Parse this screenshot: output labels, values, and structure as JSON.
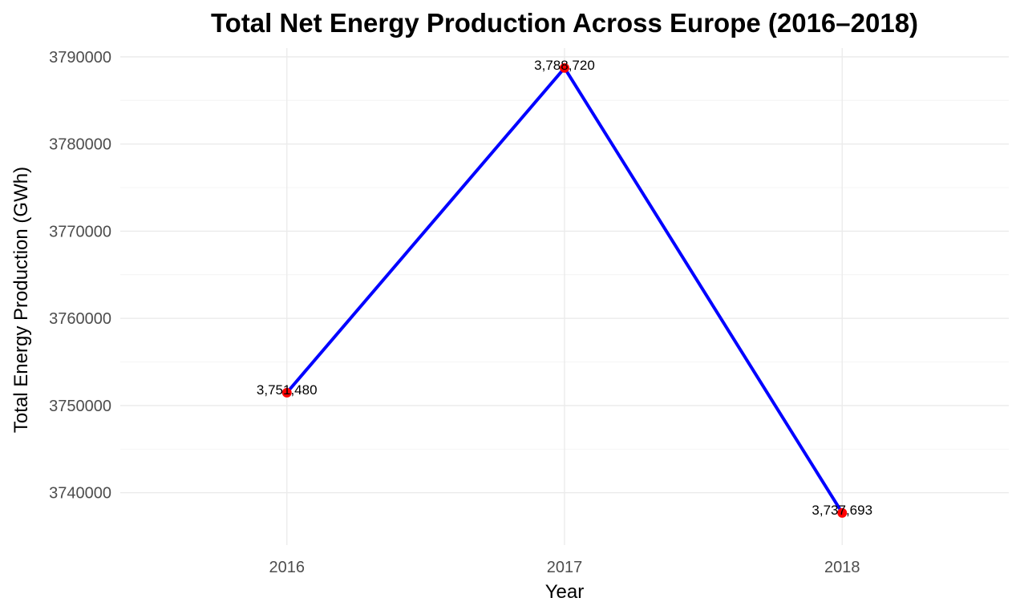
{
  "chart_data": {
    "type": "line",
    "title": "Total Net Energy Production Across Europe (2016–2018)",
    "xlabel": "Year",
    "ylabel": "Total Energy Production (GWh)",
    "x": [
      2016,
      2017,
      2018
    ],
    "x_tick_labels": [
      "2016",
      "2017",
      "2018"
    ],
    "series": [
      {
        "values": [
          3751480,
          3788720,
          3737693
        ],
        "data_labels": [
          "3,751,480",
          "3,788,720",
          "3,737,693"
        ],
        "line_color": "#0000ff",
        "point_color": "#ff0000"
      }
    ],
    "y_ticks": [
      3740000,
      3750000,
      3760000,
      3770000,
      3780000,
      3790000
    ],
    "y_tick_labels": [
      "3740000",
      "3750000",
      "3760000",
      "3770000",
      "3780000",
      "3790000"
    ],
    "ylim": [
      3734000,
      3791000
    ],
    "xlim": [
      2015.4,
      2018.6
    ],
    "grid": true,
    "legend": "none"
  }
}
